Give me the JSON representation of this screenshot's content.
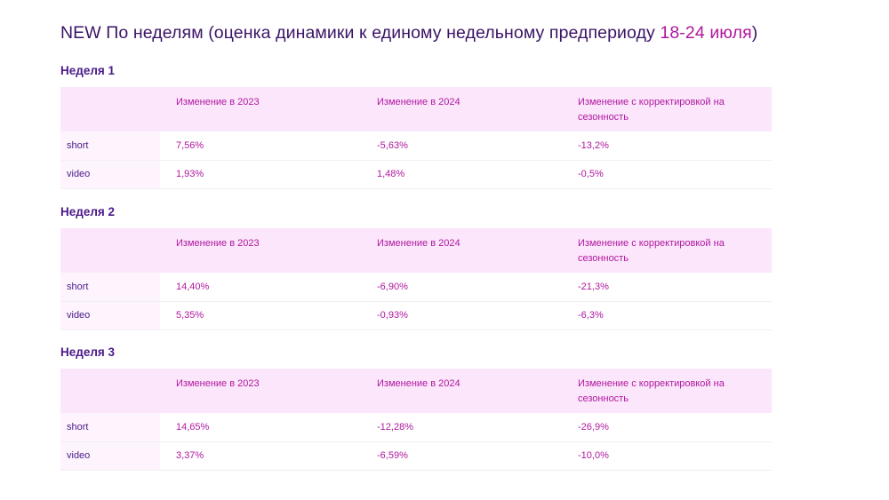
{
  "title": {
    "main": "NEW По неделям (оценка динамики к единому недельному предпериоду ",
    "highlight": "18-24 июля",
    "tail": ")"
  },
  "columns": [
    "",
    "Изменение в 2023",
    "Изменение в 2024",
    "Изменение с корректировкой на сезонность"
  ],
  "weeks": [
    {
      "label": "Неделя 1",
      "rows": [
        {
          "name": "short",
          "values": [
            "7,56%",
            "-5,63%",
            "-13,2%"
          ]
        },
        {
          "name": "video",
          "values": [
            "1,93%",
            "1,48%",
            "-0,5%"
          ]
        }
      ]
    },
    {
      "label": "Неделя 2",
      "rows": [
        {
          "name": "short",
          "values": [
            "14,40%",
            "-6,90%",
            "-21,3%"
          ]
        },
        {
          "name": "video",
          "values": [
            "5,35%",
            "-0,93%",
            "-6,3%"
          ]
        }
      ]
    },
    {
      "label": "Неделя 3",
      "rows": [
        {
          "name": "short",
          "values": [
            "14,65%",
            "-12,28%",
            "-26,9%"
          ]
        },
        {
          "name": "video",
          "values": [
            "3,37%",
            "-6,59%",
            "-10,0%"
          ]
        }
      ]
    }
  ],
  "colors": {
    "heading": "#3a1466",
    "accent": "#b0179f",
    "header_bg": "#fbe6fb",
    "label_bg": "#fdf4fd"
  }
}
